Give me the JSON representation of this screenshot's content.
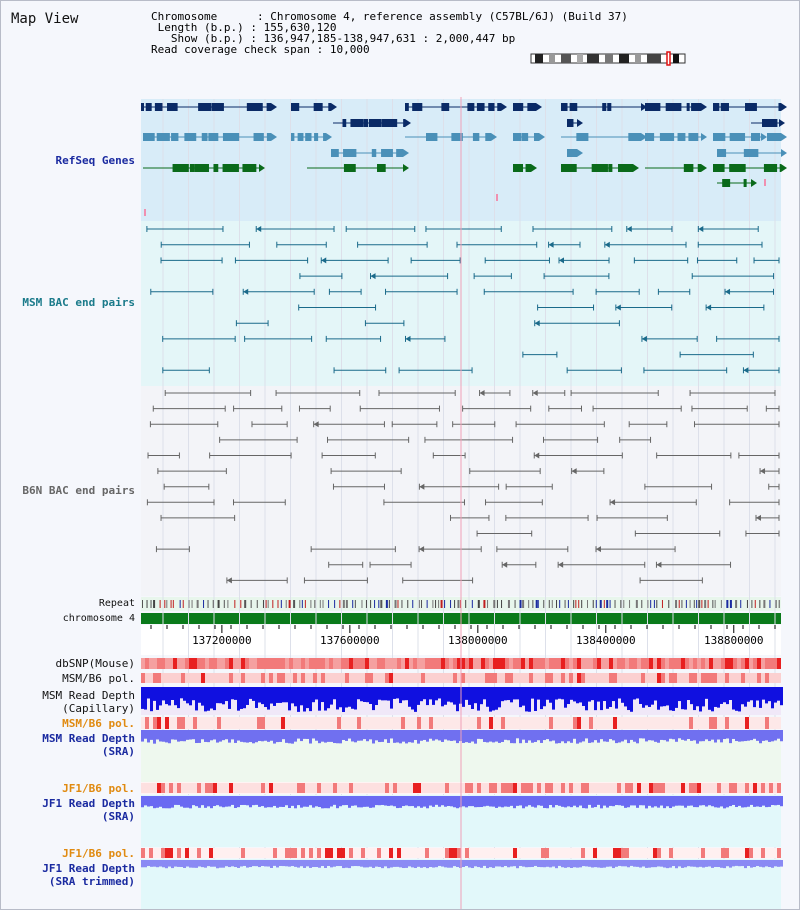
{
  "title": "Map View",
  "info": {
    "chromosome_label": "Chromosome",
    "chromosome_value": "Chromosome 4, reference assembly (C57BL/6J) (Build 37)",
    "length_label": "Length (b.p.)",
    "length_value": "155,630,120",
    "show_label": "Show (b.p.)",
    "show_value": "136,947,185-138,947,631 : 2,000,447 bp",
    "coverage_label": "Read coverage check span",
    "coverage_value": "10,000"
  },
  "tracks": {
    "refseq": "RefSeq Genes",
    "msm_bac": "MSM BAC end pairs",
    "b6n_bac": "B6N BAC end pairs",
    "repeat": "Repeat",
    "chromosome": "chromosome 4",
    "dbsnp": "dbSNP(Mouse)",
    "msm_b6_pol_1": "MSM/B6 pol.",
    "msm_read_depth_cap_1": "MSM Read Depth",
    "msm_read_depth_cap_2": "(Capillary)",
    "msm_b6_pol_2": "MSM/B6 pol.",
    "msm_read_depth_sra_1": "MSM Read Depth",
    "msm_read_depth_sra_2": "(SRA)",
    "jf1_b6_pol_1": "JF1/B6 pol.",
    "jf1_read_depth_sra_1": "JF1 Read Depth",
    "jf1_read_depth_sra_2": "(SRA)",
    "jf1_b6_pol_2": "JF1/B6 pol.",
    "jf1_read_depth_trim_1": "JF1 Read Depth",
    "jf1_read_depth_trim_2": "(SRA trimmed)"
  },
  "axis": {
    "range": [
      136947185,
      138947631
    ],
    "ticks": [
      {
        "value": 137200000,
        "label": "137200000"
      },
      {
        "value": 137600000,
        "label": "137600000"
      },
      {
        "value": 138000000,
        "label": "138000000"
      },
      {
        "value": 138400000,
        "label": "138400000"
      },
      {
        "value": 138800000,
        "label": "138800000"
      }
    ]
  },
  "colors": {
    "refseq_dark": "#0a2a66",
    "refseq_light": "#4a90b8",
    "refseq_green": "#0a6a1a",
    "bac_msm": "#1a6a8a",
    "bac_b6n": "#666666",
    "label_blue": "#1a2aa0",
    "label_teal": "#1a7a8a",
    "label_orange": "#e08a10",
    "chromosome": "#0a7a1a"
  }
}
